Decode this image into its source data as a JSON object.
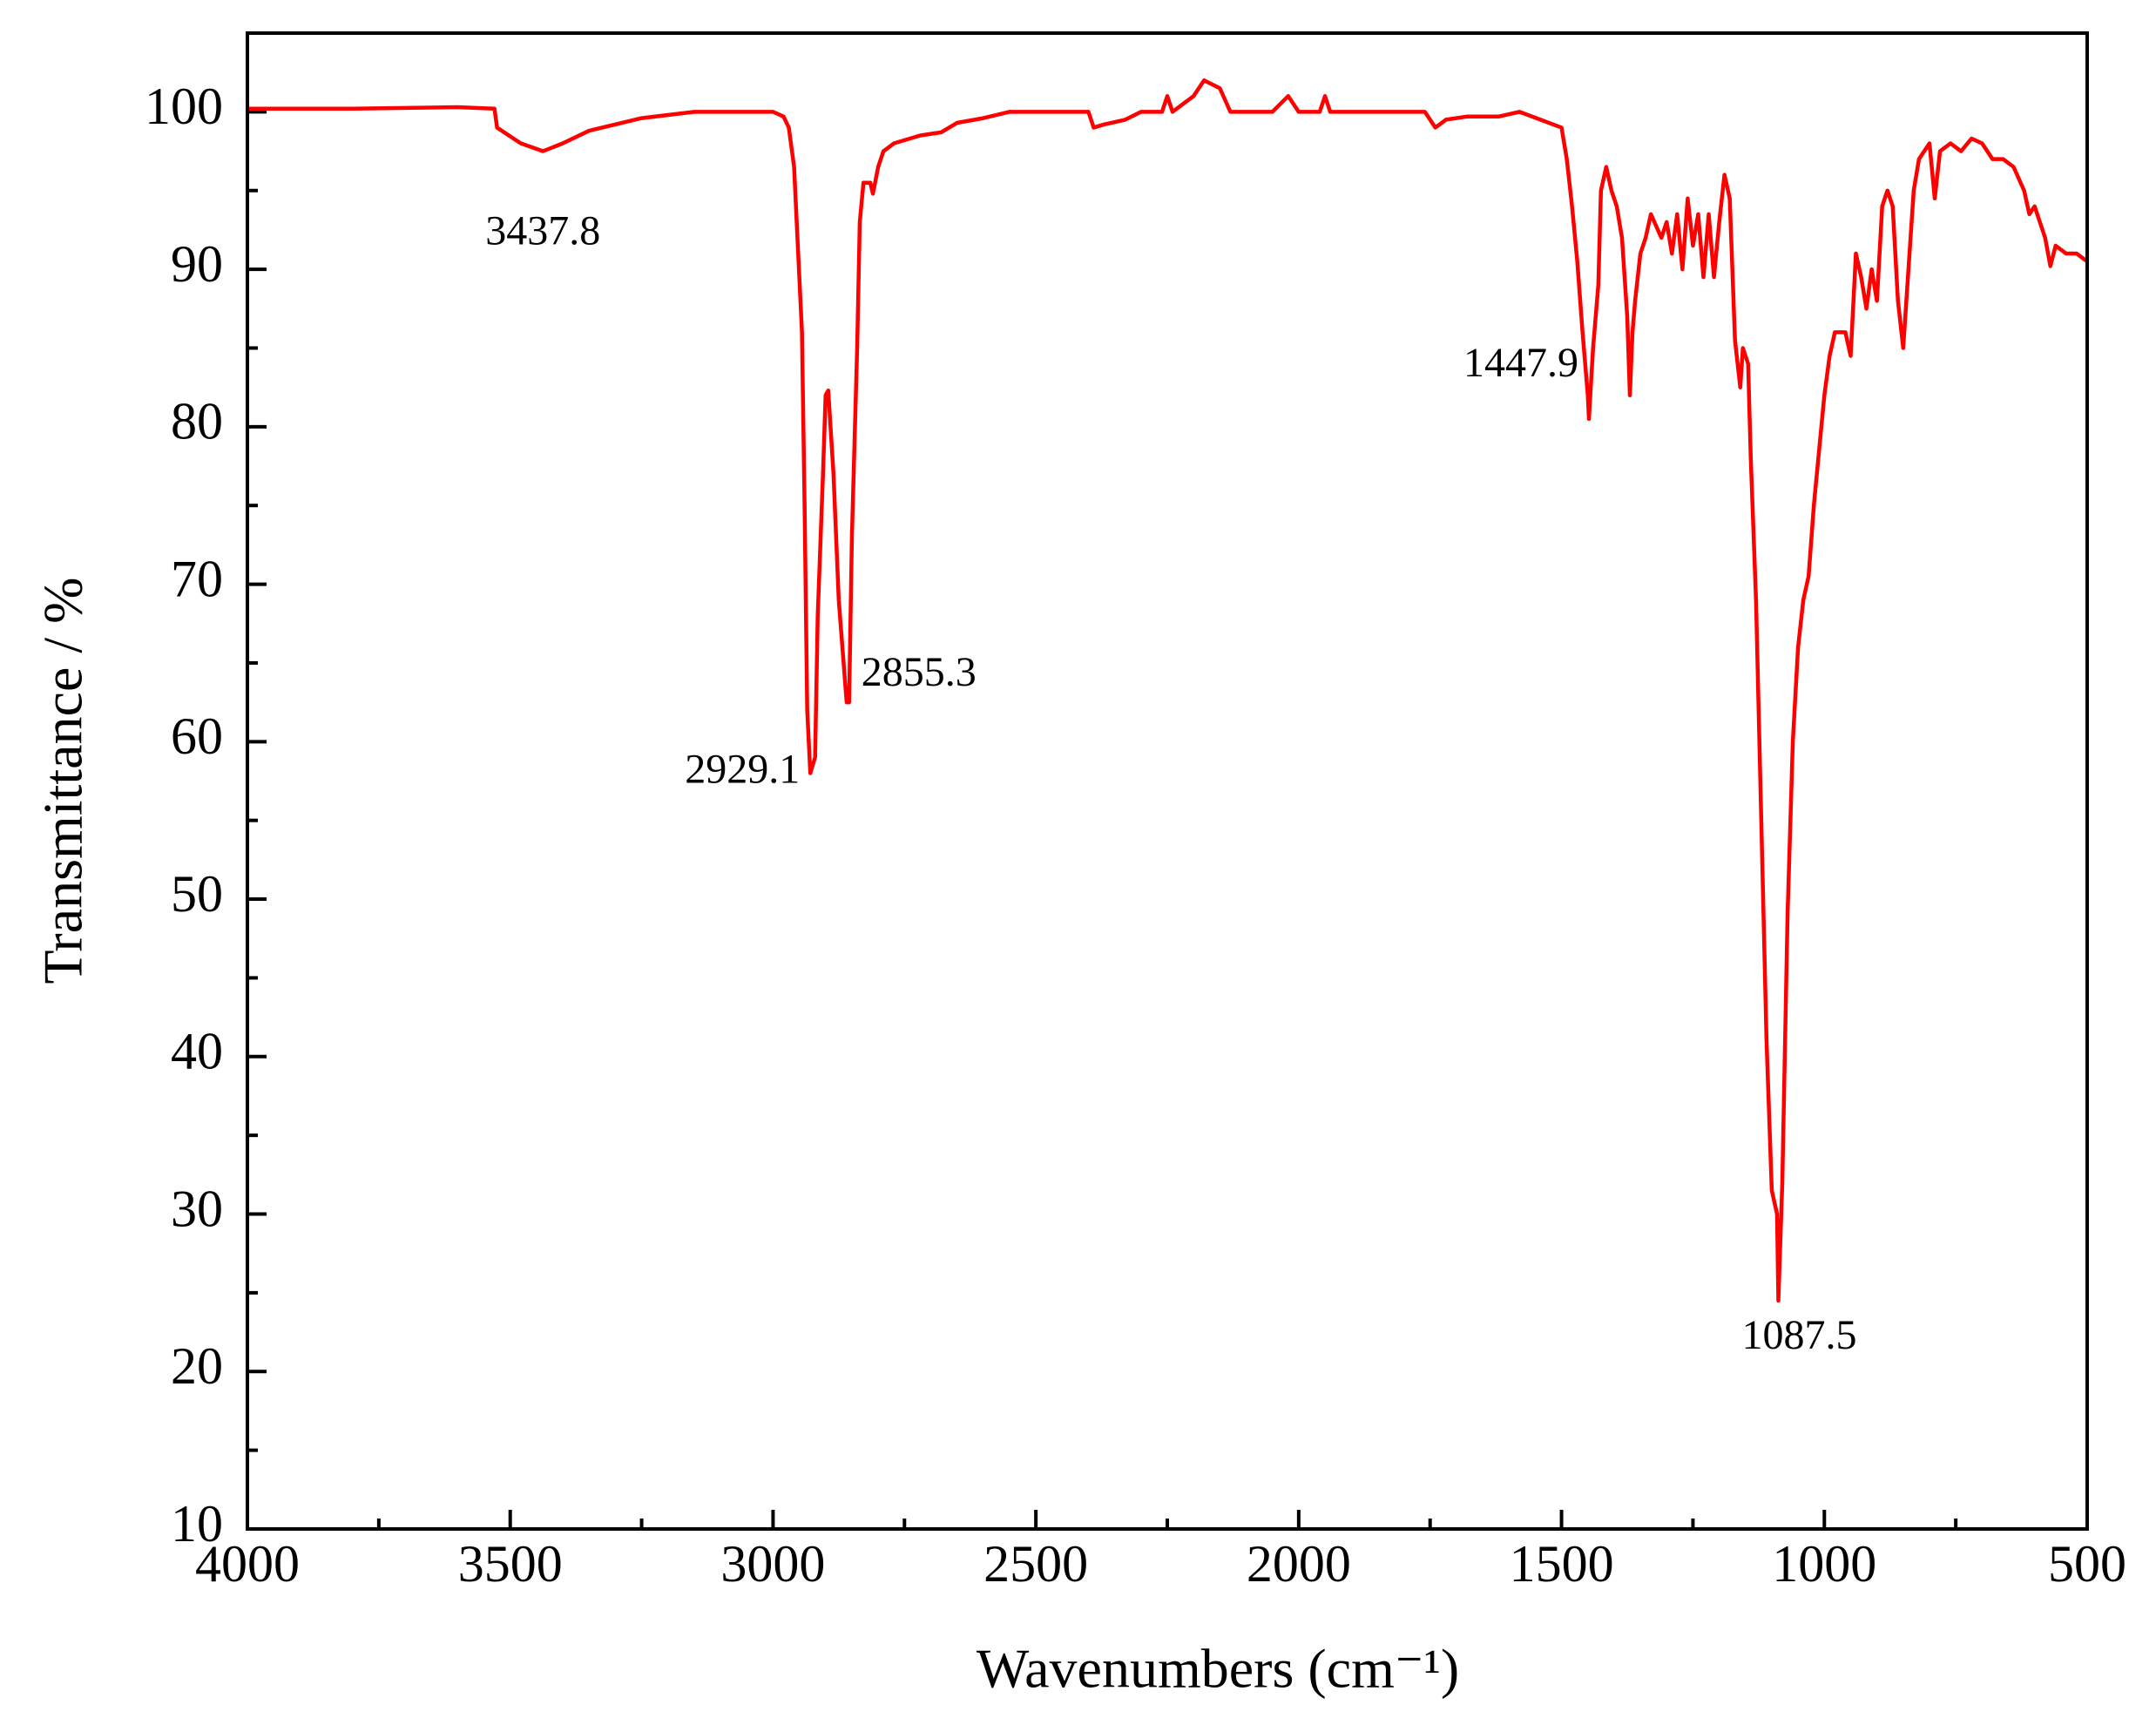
{
  "chart_data": {
    "type": "line",
    "x_label": "Wavenumbers (cm⁻¹)",
    "y_label": "Transmittance / %",
    "xlim": [
      4000,
      500
    ],
    "ylim": [
      10,
      105
    ],
    "xticks": [
      4000,
      3500,
      3000,
      2500,
      2000,
      1500,
      1000,
      500
    ],
    "xminorticks": [
      3750,
      3250,
      2750,
      2250,
      1750,
      1250,
      750
    ],
    "yticks": [
      10,
      20,
      30,
      40,
      50,
      60,
      70,
      80,
      90,
      100
    ],
    "yminorticks": [
      15,
      25,
      35,
      45,
      55,
      65,
      75,
      85,
      95
    ],
    "x": [
      4000,
      3800,
      3600,
      3530,
      3525,
      3480,
      3437.8,
      3400,
      3350,
      3250,
      3150,
      3000,
      2980,
      2970,
      2960,
      2955,
      2945,
      2940,
      2935,
      2929.1,
      2920,
      2915,
      2905,
      2900,
      2895,
      2885,
      2875,
      2860,
      2855.3,
      2850,
      2840,
      2835,
      2828,
      2815,
      2810,
      2800,
      2790,
      2770,
      2720,
      2680,
      2650,
      2600,
      2550,
      2400,
      2390,
      2370,
      2330,
      2300,
      2260,
      2250,
      2240,
      2220,
      2200,
      2180,
      2150,
      2130,
      2050,
      2020,
      2000,
      1960,
      1950,
      1940,
      1760,
      1740,
      1720,
      1680,
      1620,
      1580,
      1540,
      1500,
      1490,
      1480,
      1470,
      1460,
      1450,
      1447.9,
      1440,
      1430,
      1425,
      1415,
      1405,
      1395,
      1385,
      1375,
      1370,
      1365,
      1360,
      1350,
      1340,
      1330,
      1310,
      1300,
      1290,
      1280,
      1270,
      1260,
      1250,
      1240,
      1230,
      1220,
      1210,
      1200,
      1190,
      1180,
      1170,
      1160,
      1155,
      1145,
      1140,
      1130,
      1120,
      1110,
      1100,
      1090,
      1087.5,
      1080,
      1070,
      1060,
      1050,
      1040,
      1030,
      1020,
      1010,
      1000,
      990,
      980,
      960,
      950,
      940,
      930,
      920,
      910,
      900,
      890,
      880,
      870,
      860,
      850,
      840,
      830,
      820,
      800,
      790,
      780,
      760,
      740,
      720,
      700,
      680,
      660,
      640,
      620,
      610,
      600,
      580,
      570,
      560,
      540,
      520,
      500
    ],
    "series": [
      {
        "color": "#ff0000",
        "values": [
          100.2,
          100.2,
          100.3,
          100.2,
          99,
          98,
          97.5,
          98,
          98.8,
          99.6,
          100,
          100,
          99.7,
          99,
          96.5,
          93,
          86,
          75,
          62,
          58,
          59,
          68,
          77,
          82,
          82.3,
          77,
          69,
          62.5,
          62.5,
          73,
          85,
          93,
          95.5,
          95.5,
          94.8,
          96.5,
          97.5,
          98,
          98.5,
          98.7,
          99.3,
          99.6,
          100,
          100,
          99,
          99.2,
          99.5,
          100,
          100,
          101,
          100,
          100.5,
          101,
          102,
          101.5,
          100,
          100,
          101,
          100,
          100,
          101,
          100,
          100,
          99,
          99.5,
          99.7,
          99.7,
          100,
          99.5,
          99,
          97,
          94,
          90.5,
          86,
          82,
          80.5,
          85,
          89,
          95,
          96.5,
          95,
          94,
          92,
          87,
          82,
          86,
          88,
          91,
          92,
          93.5,
          92,
          93,
          91,
          93.5,
          90,
          94.5,
          91.5,
          93.5,
          89.5,
          93.5,
          89.5,
          93,
          96,
          94.5,
          85.5,
          82.5,
          85,
          84,
          78,
          69,
          55,
          41,
          31.5,
          30,
          24.5,
          32,
          49,
          60,
          66,
          69,
          70.5,
          75,
          78.5,
          82,
          84.5,
          86,
          86,
          84.5,
          91,
          89.5,
          87.5,
          90,
          88,
          94,
          95,
          94,
          88,
          85,
          90,
          95,
          97,
          98,
          94.5,
          97.5,
          98,
          97.5,
          98.3,
          98,
          97,
          97,
          96.5,
          95,
          93.5,
          94,
          92,
          90.2,
          91.5,
          91,
          91,
          90.5
        ]
      }
    ],
    "annotations": [
      {
        "label": "3437.8",
        "x": 3437.8,
        "y": 97.5
      },
      {
        "label": "2929.1",
        "x": 2929.1,
        "y": 58
      },
      {
        "label": "2855.3",
        "x": 2855.3,
        "y": 62.5
      },
      {
        "label": "1447.9",
        "x": 1447.9,
        "y": 80.5
      },
      {
        "label": "1087.5",
        "x": 1087.5,
        "y": 24.5
      }
    ]
  }
}
